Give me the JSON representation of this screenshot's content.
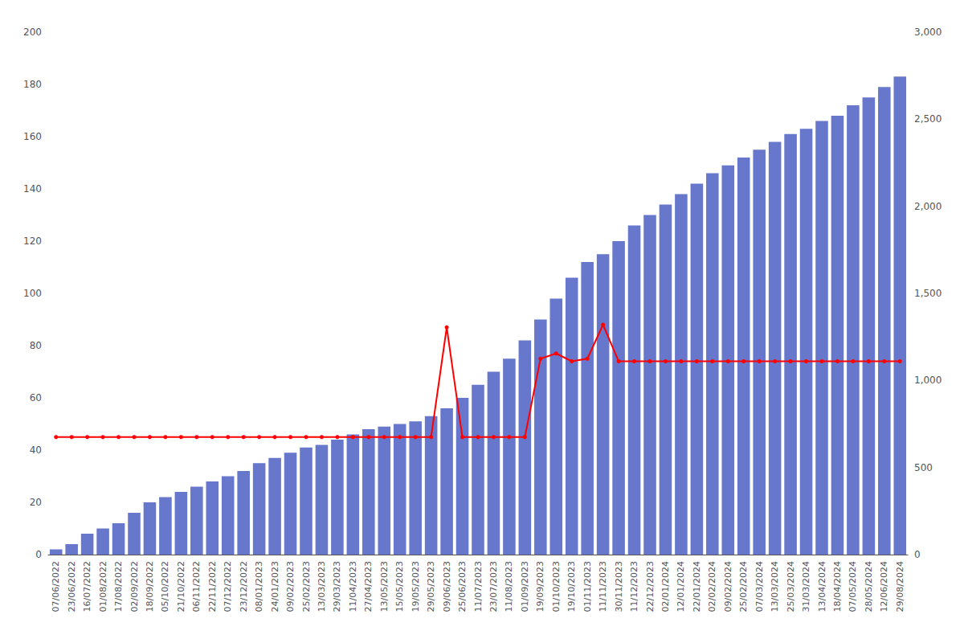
{
  "chart_data": {
    "type": "bar",
    "categories": [
      "07/06/2022",
      "23/06/2022",
      "16/07/2022",
      "01/08/2022",
      "17/08/2022",
      "02/09/2022",
      "18/09/2022",
      "05/10/2022",
      "21/10/2022",
      "06/11/2022",
      "22/11/2022",
      "07/12/2022",
      "23/12/2022",
      "08/01/2023",
      "24/01/2023",
      "09/02/2023",
      "25/02/2023",
      "13/03/2023",
      "29/03/2023",
      "11/04/2023",
      "27/04/2023",
      "13/05/2023",
      "15/05/2023",
      "19/05/2023",
      "29/05/2023",
      "09/06/2023",
      "25/06/2023",
      "11/07/2023",
      "23/07/2023",
      "11/08/2023",
      "01/09/2023",
      "19/09/2023",
      "01/10/2023",
      "19/10/2023",
      "01/11/2023",
      "11/11/2023",
      "30/11/2023",
      "11/12/2023",
      "22/12/2023",
      "02/01/2024",
      "12/01/2024",
      "22/01/2024",
      "02/02/2024",
      "09/02/2024",
      "25/02/2024",
      "07/03/2024",
      "13/03/2024",
      "25/03/2024",
      "31/03/2024",
      "13/04/2024",
      "18/04/2024",
      "07/05/2024",
      "28/05/2024",
      "12/06/2024",
      "29/08/2024"
    ],
    "series": [
      {
        "type": "bar",
        "color": "#6677CC",
        "values": [
          2,
          4,
          8,
          10,
          12,
          16,
          20,
          22,
          24,
          26,
          28,
          30,
          32,
          35,
          37,
          39,
          41,
          42,
          44,
          46,
          48,
          49,
          50,
          51,
          53,
          56,
          60,
          65,
          70,
          75,
          82,
          90,
          98,
          106,
          112,
          115,
          120,
          126,
          130,
          134,
          138,
          142,
          146,
          149,
          152,
          155,
          158,
          161,
          163,
          166,
          168,
          172,
          175,
          179,
          183
        ]
      },
      {
        "type": "line",
        "color": "#FF0000",
        "marker": "circle",
        "values": [
          45,
          45,
          45,
          45,
          45,
          45,
          45,
          45,
          45,
          45,
          45,
          45,
          45,
          45,
          45,
          45,
          45,
          45,
          45,
          45,
          45,
          45,
          45,
          45,
          45,
          87,
          45,
          45,
          45,
          45,
          45,
          75,
          77,
          74,
          75,
          88,
          74,
          74,
          74,
          74,
          74,
          74,
          74,
          74,
          74,
          74,
          74,
          74,
          74,
          74,
          74,
          74,
          74,
          74,
          74
        ]
      }
    ],
    "ylim": [
      0,
      200
    ],
    "yticks": [
      0,
      20,
      40,
      60,
      80,
      100,
      120,
      140,
      160,
      180,
      200
    ],
    "y2lim": [
      0,
      3000
    ],
    "y2ticks": [
      0,
      500,
      1000,
      1500,
      2000,
      2500,
      3000
    ],
    "grid": false
  }
}
